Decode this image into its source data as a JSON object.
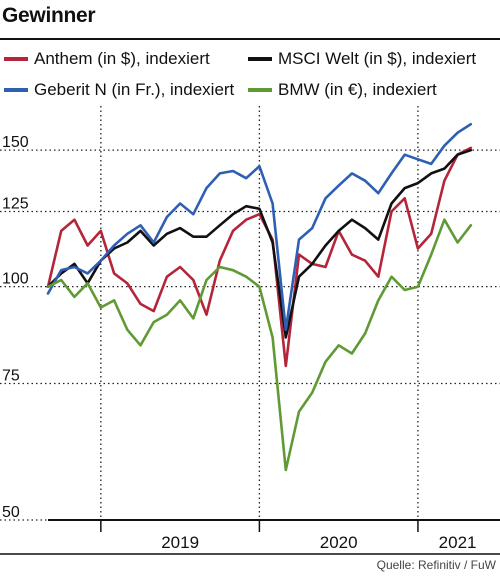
{
  "title": "Gewinner",
  "source": "Quelle: Refinitiv / FuW",
  "legend": [
    {
      "label": "Anthem (in $), indexiert",
      "color": "#b5253a"
    },
    {
      "label": "MSCI Welt (in $), indexiert",
      "color": "#111111"
    },
    {
      "label": "Geberit N (in Fr.), indexiert",
      "color": "#2f5fb3"
    },
    {
      "label": "BMW (in €), indexiert",
      "color": "#5f9a35"
    }
  ],
  "chart_data": {
    "type": "line",
    "scale": "log",
    "ylim": [
      50,
      168
    ],
    "xlim": [
      "2018-09",
      "2021-06"
    ],
    "yticks": [
      {
        "value": 50,
        "label": "50"
      },
      {
        "value": 75,
        "label": "75"
      },
      {
        "value": 100,
        "label": "100"
      },
      {
        "value": 125,
        "label": "125"
      },
      {
        "value": 150,
        "label": "150"
      }
    ],
    "xticks": [
      {
        "value": "2019-07",
        "label": "2019"
      },
      {
        "value": "2020-07",
        "label": "2020"
      },
      {
        "value": "2021-04",
        "label": "2021"
      }
    ],
    "vgrid": [
      "2019-01",
      "2020-01",
      "2021-01"
    ],
    "series": [
      {
        "name": "Anthem (in $), indexiert",
        "color": "#b5253a",
        "x": [
          "2018-09",
          "2018-10",
          "2018-11",
          "2018-12",
          "2019-01",
          "2019-02",
          "2019-03",
          "2019-04",
          "2019-05",
          "2019-06",
          "2019-07",
          "2019-08",
          "2019-09",
          "2019-10",
          "2019-11",
          "2019-12",
          "2020-01",
          "2020-02",
          "2020-03",
          "2020-04",
          "2020-05",
          "2020-06",
          "2020-07",
          "2020-08",
          "2020-09",
          "2020-10",
          "2020-11",
          "2020-12",
          "2021-01",
          "2021-02",
          "2021-03",
          "2021-04",
          "2021-05"
        ],
        "values": [
          100,
          118,
          122,
          113,
          118,
          104,
          101,
          95,
          93,
          103,
          106,
          102,
          92,
          108,
          118,
          122,
          124,
          115,
          79,
          110,
          107,
          106,
          118,
          110,
          108,
          103,
          125,
          130,
          112,
          117,
          137,
          148,
          151
        ]
      },
      {
        "name": "MSCI Welt (in $), indexiert",
        "color": "#111111",
        "x": [
          "2018-09",
          "2018-10",
          "2018-11",
          "2018-12",
          "2019-01",
          "2019-02",
          "2019-03",
          "2019-04",
          "2019-05",
          "2019-06",
          "2019-07",
          "2019-08",
          "2019-09",
          "2019-10",
          "2019-11",
          "2019-12",
          "2020-01",
          "2020-02",
          "2020-03",
          "2020-04",
          "2020-05",
          "2020-06",
          "2020-07",
          "2020-08",
          "2020-09",
          "2020-10",
          "2020-11",
          "2020-12",
          "2021-01",
          "2021-02",
          "2021-03",
          "2021-04",
          "2021-05"
        ],
        "values": [
          100,
          104,
          107,
          101,
          108,
          112,
          114,
          118,
          113,
          117,
          119,
          116,
          116,
          120,
          124,
          127,
          126,
          114,
          86,
          103,
          107,
          113,
          118,
          122,
          119,
          115,
          128,
          134,
          136,
          140,
          142,
          148,
          150
        ]
      },
      {
        "name": "Geberit N (in Fr.), indexiert",
        "color": "#2f5fb3",
        "x": [
          "2018-09",
          "2018-10",
          "2018-11",
          "2018-12",
          "2019-01",
          "2019-02",
          "2019-03",
          "2019-04",
          "2019-05",
          "2019-06",
          "2019-07",
          "2019-08",
          "2019-09",
          "2019-10",
          "2019-11",
          "2019-12",
          "2020-01",
          "2020-02",
          "2020-03",
          "2020-04",
          "2020-05",
          "2020-06",
          "2020-07",
          "2020-08",
          "2020-09",
          "2020-10",
          "2020-11",
          "2020-12",
          "2021-01",
          "2021-02",
          "2021-03",
          "2021-04",
          "2021-05"
        ],
        "values": [
          98,
          105,
          106,
          104,
          108,
          113,
          117,
          120,
          114,
          123,
          128,
          124,
          134,
          140,
          141,
          138,
          143,
          128,
          88,
          115,
          119,
          130,
          135,
          140,
          137,
          132,
          140,
          148,
          146,
          144,
          152,
          158,
          162
        ]
      },
      {
        "name": "BMW (in €), indexiert",
        "color": "#5f9a35",
        "x": [
          "2018-09",
          "2018-10",
          "2018-11",
          "2018-12",
          "2019-01",
          "2019-02",
          "2019-03",
          "2019-04",
          "2019-05",
          "2019-06",
          "2019-07",
          "2019-08",
          "2019-09",
          "2019-10",
          "2019-11",
          "2019-12",
          "2020-01",
          "2020-02",
          "2020-03",
          "2020-04",
          "2020-05",
          "2020-06",
          "2020-07",
          "2020-08",
          "2020-09",
          "2020-10",
          "2020-11",
          "2020-12",
          "2021-01",
          "2021-02",
          "2021-03",
          "2021-04",
          "2021-05"
        ],
        "values": [
          100,
          102,
          97,
          101,
          94,
          96,
          88,
          84,
          90,
          92,
          96,
          91,
          102,
          106,
          105,
          103,
          100,
          86,
          58,
          69,
          73,
          80,
          84,
          82,
          87,
          96,
          103,
          99,
          100,
          110,
          122,
          114,
          120
        ]
      }
    ]
  }
}
